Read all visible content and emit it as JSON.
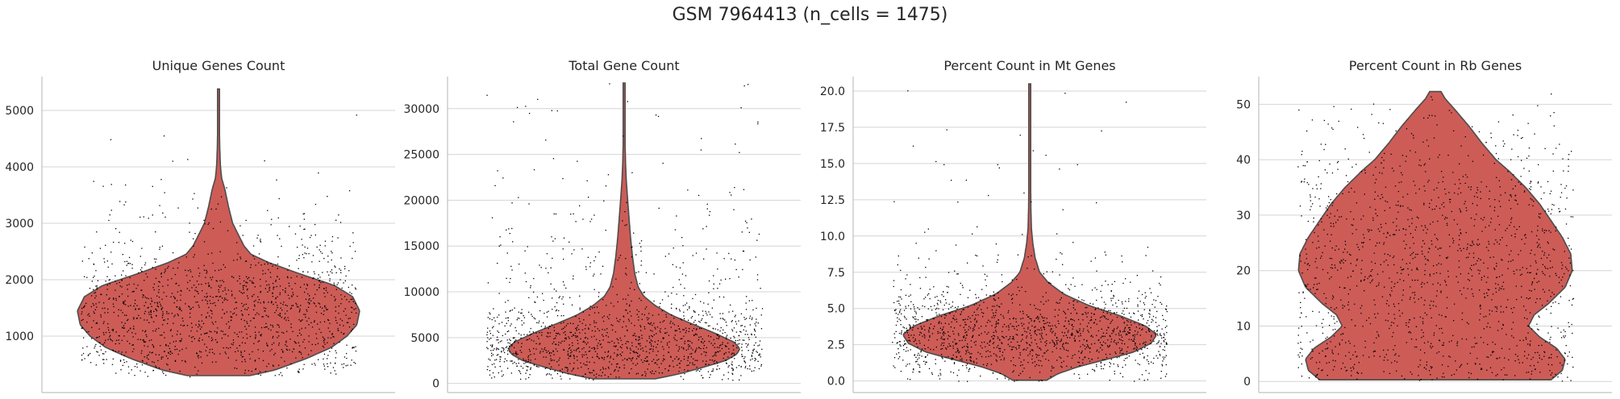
{
  "title": "GSM 7964413 (n_cells = 1475)",
  "colors": {
    "violin_fill": "#cd5c57",
    "violin_edge": "#4d4d4d",
    "points": "#000000",
    "grid": "#d4d4d4",
    "axis": "#c0c0c0",
    "text": "#262626"
  },
  "chart_data": [
    {
      "type": "violin",
      "title": "Unique Genes Count",
      "grid": "horizontal",
      "ylim": [
        0,
        5600
      ],
      "yticks": [
        1000,
        2000,
        3000,
        4000,
        5000
      ],
      "ytick_labels": [
        "1000",
        "2000",
        "3000",
        "4000",
        "5000"
      ],
      "data_min": 300,
      "data_max": 5380,
      "n_points": 1475,
      "density": [
        [
          300,
          0.22
        ],
        [
          400,
          0.4
        ],
        [
          600,
          0.62
        ],
        [
          800,
          0.8
        ],
        [
          1000,
          0.91
        ],
        [
          1200,
          0.98
        ],
        [
          1450,
          1.0
        ],
        [
          1700,
          0.95
        ],
        [
          1900,
          0.82
        ],
        [
          2100,
          0.58
        ],
        [
          2300,
          0.36
        ],
        [
          2450,
          0.23
        ],
        [
          2600,
          0.18
        ],
        [
          2800,
          0.14
        ],
        [
          3000,
          0.1
        ],
        [
          3300,
          0.07
        ],
        [
          3600,
          0.045
        ],
        [
          3800,
          0.022
        ],
        [
          4000,
          0.014
        ],
        [
          4300,
          0.009
        ],
        [
          4700,
          0.006
        ],
        [
          5100,
          0.004
        ],
        [
          5380,
          0.003
        ]
      ]
    },
    {
      "type": "violin",
      "title": "Total Gene Count",
      "grid": "horizontal",
      "ylim": [
        -1000,
        33500
      ],
      "yticks": [
        0,
        5000,
        10000,
        15000,
        20000,
        25000,
        30000
      ],
      "ytick_labels": [
        "0",
        "5000",
        "10000",
        "15000",
        "20000",
        "25000",
        "30000"
      ],
      "data_min": 500,
      "data_max": 32800,
      "n_points": 1475,
      "density": [
        [
          500,
          0.22
        ],
        [
          1000,
          0.38
        ],
        [
          1800,
          0.57
        ],
        [
          2500,
          0.72
        ],
        [
          3200,
          0.8
        ],
        [
          3800,
          0.82
        ],
        [
          4500,
          0.78
        ],
        [
          5500,
          0.64
        ],
        [
          6500,
          0.48
        ],
        [
          7500,
          0.33
        ],
        [
          8500,
          0.22
        ],
        [
          9500,
          0.14
        ],
        [
          10500,
          0.1
        ],
        [
          12000,
          0.075
        ],
        [
          14000,
          0.058
        ],
        [
          16000,
          0.045
        ],
        [
          18000,
          0.035
        ],
        [
          20000,
          0.025
        ],
        [
          22000,
          0.016
        ],
        [
          24000,
          0.01
        ],
        [
          26000,
          0.007
        ],
        [
          28000,
          0.005
        ],
        [
          30000,
          0.004
        ],
        [
          32800,
          0.003
        ]
      ]
    },
    {
      "type": "violin",
      "title": "Percent Count in Mt Genes",
      "grid": "horizontal",
      "ylim": [
        -0.8,
        21
      ],
      "yticks": [
        0.0,
        2.5,
        5.0,
        7.5,
        10.0,
        12.5,
        15.0,
        17.5,
        20.0
      ],
      "ytick_labels": [
        "0.0",
        "2.5",
        "5.0",
        "7.5",
        "10.0",
        "12.5",
        "15.0",
        "17.5",
        "20.0"
      ],
      "data_min": 0.05,
      "data_max": 20.5,
      "n_points": 1475,
      "density": [
        [
          0.05,
          0.12
        ],
        [
          0.5,
          0.2
        ],
        [
          1.0,
          0.35
        ],
        [
          1.5,
          0.55
        ],
        [
          2.0,
          0.74
        ],
        [
          2.6,
          0.86
        ],
        [
          3.2,
          0.9
        ],
        [
          3.8,
          0.82
        ],
        [
          4.5,
          0.64
        ],
        [
          5.2,
          0.42
        ],
        [
          6.0,
          0.24
        ],
        [
          6.8,
          0.13
        ],
        [
          7.5,
          0.07
        ],
        [
          8.5,
          0.038
        ],
        [
          9.5,
          0.022
        ],
        [
          10.5,
          0.012
        ],
        [
          12.0,
          0.008
        ],
        [
          14.0,
          0.006
        ],
        [
          16.0,
          0.005
        ],
        [
          18.0,
          0.004
        ],
        [
          20.5,
          0.003
        ]
      ]
    },
    {
      "type": "violin",
      "title": "Percent Count in Rb Genes",
      "grid": "horizontal",
      "ylim": [
        -2,
        55
      ],
      "yticks": [
        0,
        10,
        20,
        30,
        40,
        50
      ],
      "ytick_labels": [
        "0",
        "10",
        "20",
        "30",
        "40",
        "50"
      ],
      "data_min": 0.3,
      "data_max": 52.3,
      "n_points": 1475,
      "density": [
        [
          0.3,
          0.82
        ],
        [
          2,
          0.9
        ],
        [
          4,
          0.92
        ],
        [
          6,
          0.86
        ],
        [
          8,
          0.74
        ],
        [
          10,
          0.66
        ],
        [
          12,
          0.7
        ],
        [
          14,
          0.8
        ],
        [
          17,
          0.92
        ],
        [
          20,
          0.97
        ],
        [
          23,
          0.96
        ],
        [
          26,
          0.9
        ],
        [
          29,
          0.82
        ],
        [
          32,
          0.74
        ],
        [
          35,
          0.64
        ],
        [
          38,
          0.52
        ],
        [
          40,
          0.43
        ],
        [
          43,
          0.33
        ],
        [
          46,
          0.24
        ],
        [
          49,
          0.14
        ],
        [
          51,
          0.07
        ],
        [
          52.3,
          0.04
        ]
      ]
    }
  ]
}
